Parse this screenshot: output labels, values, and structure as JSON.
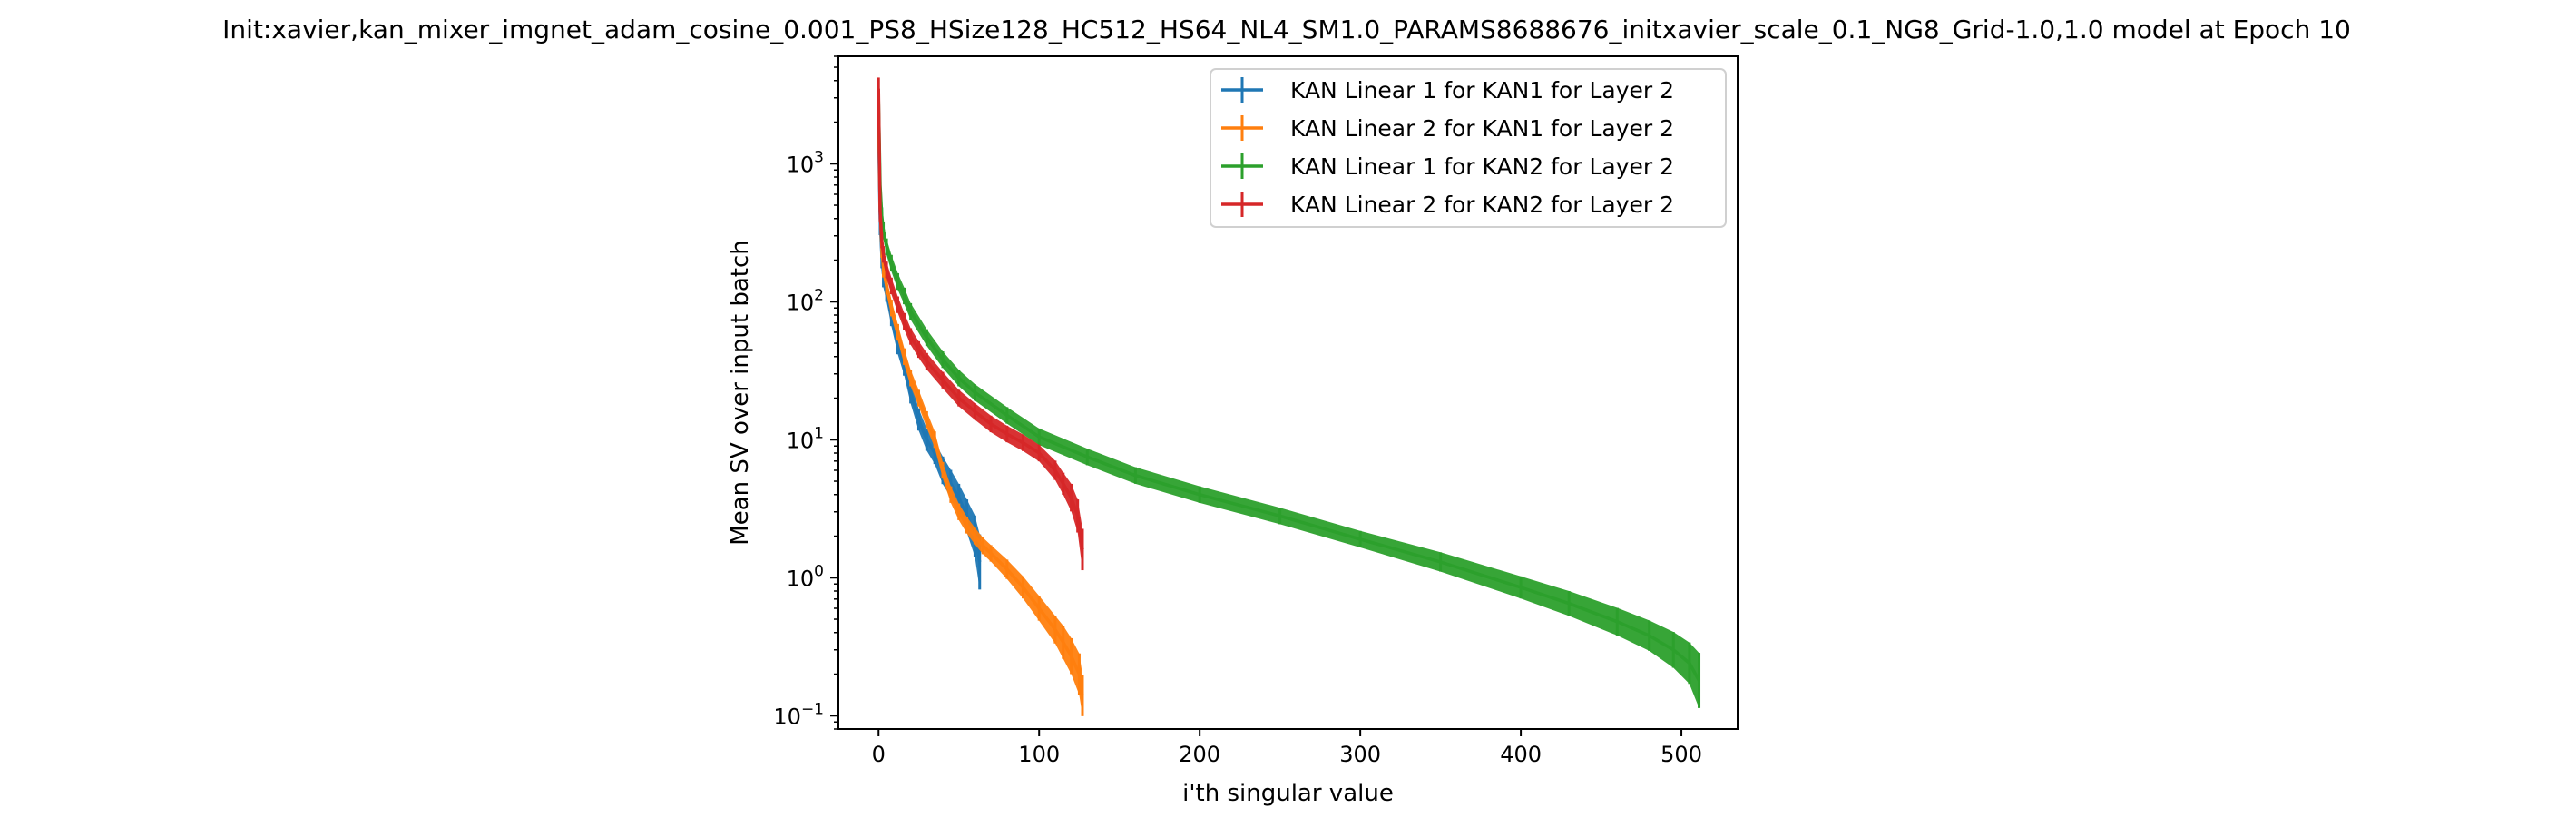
{
  "chart_data": {
    "type": "line",
    "title": "Init:xavier,kan_mixer_imgnet_adam_cosine_0.001_PS8_HSize128_HC512_HS64_NL4_SM1.0_PARAMS8688676_initxavier_scale_0.1_NG8_Grid-1.0,1.0 model at Epoch 10",
    "xlabel": "i'th singular value",
    "ylabel": "Mean SV over input batch",
    "xlim": [
      -25,
      535
    ],
    "ylim": [
      0.08,
      6000
    ],
    "yscale": "log",
    "grid": false,
    "legend_position": "top-right",
    "x_ticks": [
      0,
      100,
      200,
      300,
      400,
      500
    ],
    "x_tick_labels": [
      "0",
      "100",
      "200",
      "300",
      "400",
      "500"
    ],
    "y_ticks": [
      0.1,
      1,
      10,
      100,
      1000
    ],
    "y_tick_labels": [
      {
        "base": "10",
        "exp": "−1"
      },
      {
        "base": "10",
        "exp": "0"
      },
      {
        "base": "10",
        "exp": "1"
      },
      {
        "base": "10",
        "exp": "2"
      },
      {
        "base": "10",
        "exp": "3"
      }
    ],
    "series": [
      {
        "name": "KAN Linear 1 for KAN1 for Layer 2",
        "color": "#1f77b4",
        "x": [
          0,
          1,
          2,
          3,
          5,
          8,
          12,
          16,
          20,
          25,
          30,
          35,
          40,
          45,
          50,
          55,
          60,
          63
        ],
        "y": [
          2000,
          400,
          220,
          160,
          120,
          80,
          50,
          35,
          22,
          14,
          10,
          8,
          6,
          4.8,
          3.8,
          2.8,
          2.0,
          1.3
        ],
        "err": [
          0.12,
          0.12,
          0.1,
          0.1,
          0.08,
          0.08,
          0.08,
          0.08,
          0.08,
          0.08,
          0.08,
          0.08,
          0.1,
          0.1,
          0.1,
          0.12,
          0.15,
          0.2
        ]
      },
      {
        "name": "KAN Linear 2 for KAN1 for Layer 2",
        "color": "#ff7f0e",
        "x": [
          0,
          1,
          2,
          3,
          5,
          8,
          12,
          16,
          20,
          25,
          30,
          35,
          40,
          45,
          50,
          55,
          60,
          65,
          70,
          80,
          90,
          100,
          110,
          115,
          120,
          125,
          127
        ],
        "y": [
          2500,
          500,
          250,
          180,
          130,
          90,
          60,
          40,
          28,
          20,
          14,
          10,
          6,
          4,
          3,
          2.4,
          2.0,
          1.7,
          1.5,
          1.15,
          0.85,
          0.6,
          0.42,
          0.34,
          0.27,
          0.2,
          0.14
        ],
        "err": [
          0.1,
          0.1,
          0.08,
          0.08,
          0.06,
          0.06,
          0.06,
          0.06,
          0.06,
          0.06,
          0.06,
          0.06,
          0.06,
          0.06,
          0.06,
          0.06,
          0.06,
          0.06,
          0.06,
          0.07,
          0.08,
          0.09,
          0.1,
          0.12,
          0.13,
          0.15,
          0.15
        ]
      },
      {
        "name": "KAN Linear 1 for KAN2 for Layer 2",
        "color": "#2ca02c",
        "x": [
          0,
          1,
          2,
          3,
          5,
          8,
          12,
          16,
          20,
          30,
          40,
          50,
          60,
          80,
          100,
          130,
          160,
          200,
          250,
          300,
          350,
          400,
          430,
          460,
          480,
          495,
          505,
          511
        ],
        "y": [
          3000,
          700,
          420,
          330,
          250,
          190,
          140,
          110,
          85,
          55,
          38,
          28,
          22,
          15,
          10.5,
          7.5,
          5.5,
          4.0,
          2.8,
          1.9,
          1.3,
          0.85,
          0.65,
          0.48,
          0.38,
          0.3,
          0.24,
          0.18
        ],
        "err": [
          0.06,
          0.06,
          0.06,
          0.06,
          0.06,
          0.06,
          0.06,
          0.06,
          0.06,
          0.06,
          0.06,
          0.06,
          0.06,
          0.06,
          0.06,
          0.06,
          0.06,
          0.06,
          0.06,
          0.06,
          0.07,
          0.08,
          0.09,
          0.1,
          0.11,
          0.13,
          0.15,
          0.2
        ]
      },
      {
        "name": "KAN Linear 2 for KAN2 for Layer 2",
        "color": "#d62728",
        "x": [
          0,
          1,
          2,
          3,
          5,
          8,
          12,
          16,
          20,
          25,
          30,
          40,
          50,
          60,
          70,
          80,
          90,
          100,
          110,
          115,
          120,
          124,
          127
        ],
        "y": [
          3500,
          450,
          280,
          220,
          170,
          130,
          95,
          72,
          56,
          45,
          37,
          27,
          20,
          16,
          13,
          11,
          9.5,
          8,
          6,
          4.8,
          3.8,
          2.8,
          1.6
        ],
        "err": [
          0.08,
          0.08,
          0.06,
          0.06,
          0.06,
          0.06,
          0.06,
          0.06,
          0.06,
          0.06,
          0.06,
          0.06,
          0.06,
          0.06,
          0.06,
          0.06,
          0.06,
          0.06,
          0.07,
          0.08,
          0.1,
          0.12,
          0.15
        ]
      }
    ]
  }
}
